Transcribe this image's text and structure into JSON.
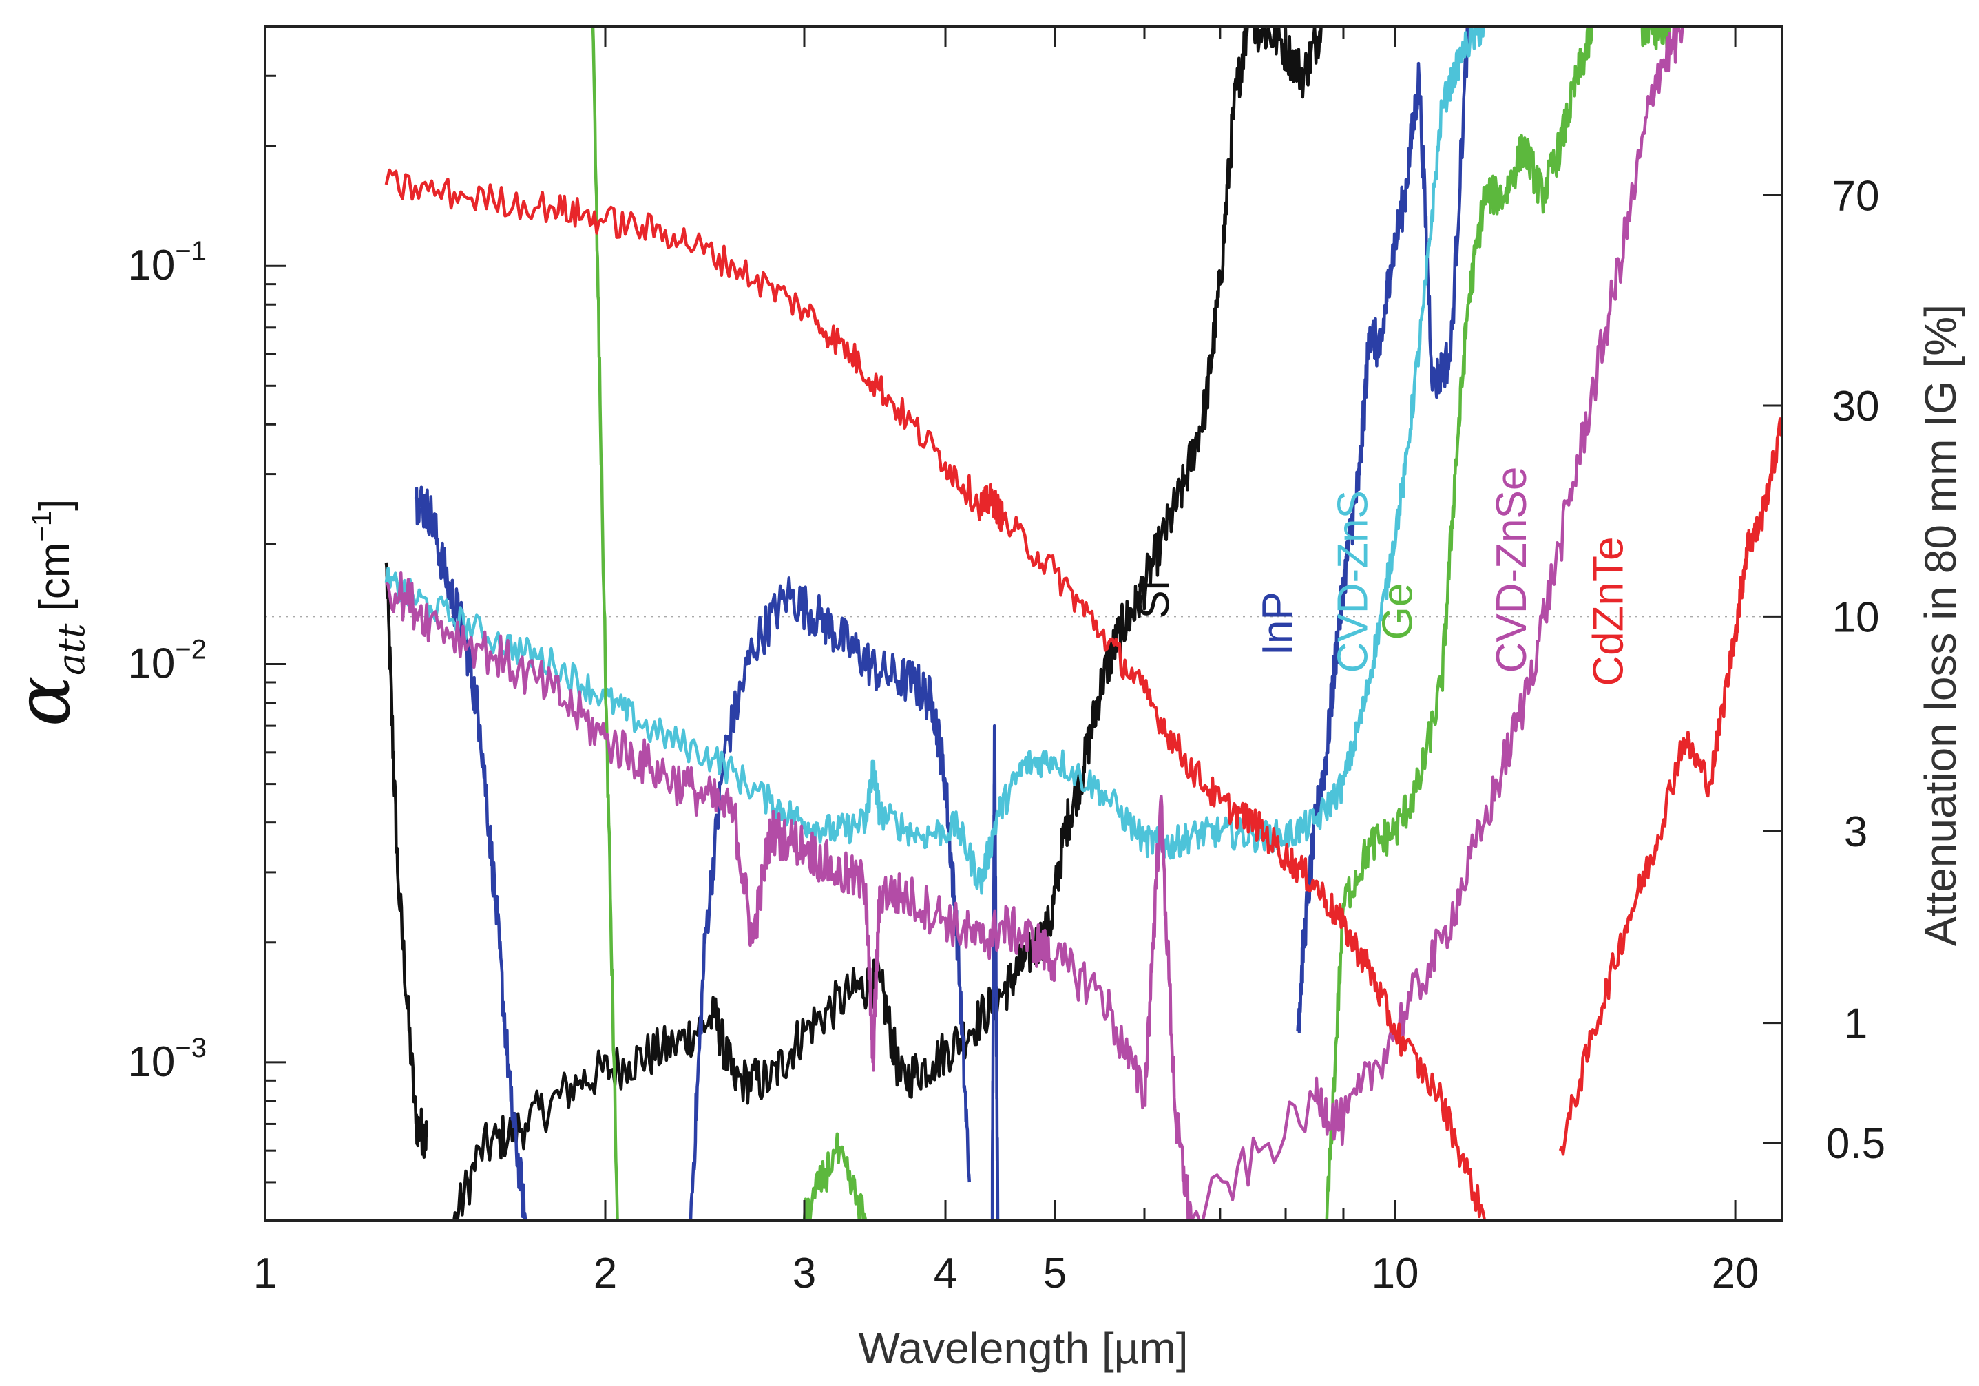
{
  "chart_data": {
    "type": "line",
    "title": "",
    "xlabel": "Wavelength [µm]",
    "ylabel": {
      "symbol": "α",
      "subscript": "att",
      "unit": "[cm",
      "unit_exp": "−1",
      "unit_close": "]"
    },
    "y2label": "Attenuation loss in 80 mm IG [%]",
    "xscale": "log",
    "yscale": "log",
    "xlim": [
      1,
      22
    ],
    "ylim": [
      0.0004,
      0.4
    ],
    "x_ticks": [
      {
        "value": 1,
        "label": "1"
      },
      {
        "value": 2,
        "label": "2"
      },
      {
        "value": 3,
        "label": "3"
      },
      {
        "value": 4,
        "label": "4"
      },
      {
        "value": 5,
        "label": "5"
      },
      {
        "value": 10,
        "label": "10"
      },
      {
        "value": 20,
        "label": "20"
      }
    ],
    "y_ticks": [
      {
        "value": 0.1,
        "base": "10",
        "exp": "−1"
      },
      {
        "value": 0.01,
        "base": "10",
        "exp": "−2"
      },
      {
        "value": 0.001,
        "base": "10",
        "exp": "−3"
      }
    ],
    "y2_ticks": [
      {
        "value": 70,
        "alpha": 0.1505,
        "label": "70"
      },
      {
        "value": 30,
        "alpha": 0.0446,
        "label": "30"
      },
      {
        "value": 10,
        "alpha": 0.01317,
        "label": "10"
      },
      {
        "value": 3,
        "alpha": 0.00381,
        "label": "3"
      },
      {
        "value": 1,
        "alpha": 0.001256,
        "label": "1"
      },
      {
        "value": 0.5,
        "alpha": 0.000627,
        "label": "0.5"
      }
    ],
    "reference_line": {
      "alpha": 0.01317,
      "style": "dotted"
    },
    "series": [
      {
        "name": "Si",
        "color": "#111111",
        "label_at": [
          6.3,
          0.013
        ],
        "noise": 0.06,
        "segments": [
          [
            [
              1.28,
              0.018
            ],
            [
              1.31,
              0.003
            ],
            [
              1.36,
              0.0007
            ],
            [
              1.39,
              0.00065
            ]
          ],
          [
            [
              1.42,
              0.0003
            ],
            [
              1.55,
              0.0006
            ],
            [
              1.7,
              0.0007
            ],
            [
              1.9,
              0.0009
            ],
            [
              2.1,
              0.001
            ],
            [
              2.3,
              0.0011
            ],
            [
              2.5,
              0.0013
            ],
            [
              2.6,
              0.0009
            ],
            [
              2.8,
              0.0009
            ],
            [
              3.0,
              0.0012
            ],
            [
              3.3,
              0.0015
            ],
            [
              3.5,
              0.0016
            ],
            [
              3.65,
              0.0009
            ],
            [
              3.9,
              0.001
            ],
            [
              4.2,
              0.0012
            ],
            [
              4.5,
              0.0015
            ],
            [
              4.7,
              0.0018
            ],
            [
              4.95,
              0.0022
            ],
            [
              5.1,
              0.0038
            ],
            [
              5.3,
              0.0055
            ],
            [
              5.5,
              0.009
            ],
            [
              5.7,
              0.012
            ],
            [
              5.9,
              0.014
            ],
            [
              6.2,
              0.02
            ],
            [
              6.5,
              0.028
            ],
            [
              6.8,
              0.045
            ],
            [
              7.0,
              0.09
            ],
            [
              7.2,
              0.25
            ],
            [
              7.4,
              0.4
            ]
          ],
          [
            [
              7.5,
              0.4
            ],
            [
              7.9,
              0.37
            ],
            [
              8.3,
              0.3
            ],
            [
              8.6,
              0.4
            ]
          ]
        ]
      },
      {
        "name": "InP",
        "color": "#2b3fa6",
        "label_at": [
          8.1,
          0.0105
        ],
        "noise": 0.06,
        "segments": [
          [
            [
              1.36,
              0.026
            ],
            [
              1.4,
              0.024
            ],
            [
              1.45,
              0.016
            ],
            [
              1.5,
              0.012
            ],
            [
              1.55,
              0.007
            ],
            [
              1.6,
              0.0025
            ],
            [
              1.65,
              0.0008
            ],
            [
              1.7,
              0.0004
            ]
          ],
          [
            [
              2.38,
              0.0004
            ],
            [
              2.45,
              0.002
            ],
            [
              2.55,
              0.006
            ],
            [
              2.7,
              0.011
            ],
            [
              2.9,
              0.015
            ],
            [
              3.1,
              0.013
            ],
            [
              3.3,
              0.011
            ],
            [
              3.5,
              0.0095
            ],
            [
              3.75,
              0.009
            ],
            [
              3.9,
              0.008
            ],
            [
              4.0,
              0.005
            ],
            [
              4.1,
              0.002
            ],
            [
              4.2,
              0.0005
            ]
          ],
          [
            [
              4.4,
              0.0004
            ],
            [
              4.42,
              0.007
            ],
            [
              4.45,
              0.0004
            ]
          ],
          [
            [
              8.2,
              0.0012
            ],
            [
              8.3,
              0.002
            ],
            [
              8.5,
              0.004
            ],
            [
              8.7,
              0.006
            ],
            [
              8.9,
              0.012
            ],
            [
              9.1,
              0.02
            ],
            [
              9.3,
              0.03
            ],
            [
              9.5,
              0.07
            ],
            [
              9.7,
              0.06
            ],
            [
              9.9,
              0.1
            ],
            [
              10.2,
              0.15
            ],
            [
              10.5,
              0.3
            ],
            [
              10.8,
              0.05
            ],
            [
              11.2,
              0.06
            ],
            [
              11.6,
              0.4
            ]
          ]
        ]
      },
      {
        "name": "CVD-ZnS",
        "color": "#4dc3d9",
        "label_at": [
          9.45,
          0.0095
        ],
        "noise": 0.04,
        "segments": [
          [
            [
              1.28,
              0.016
            ],
            [
              1.4,
              0.014
            ],
            [
              1.6,
              0.0115
            ],
            [
              1.8,
              0.01
            ],
            [
              2.0,
              0.0082
            ],
            [
              2.2,
              0.0068
            ],
            [
              2.5,
              0.0058
            ],
            [
              2.8,
              0.0045
            ],
            [
              3.0,
              0.004
            ],
            [
              3.2,
              0.0038
            ],
            [
              3.4,
              0.004
            ],
            [
              3.45,
              0.0055
            ],
            [
              3.5,
              0.0042
            ],
            [
              3.8,
              0.0037
            ],
            [
              4.1,
              0.0039
            ],
            [
              4.3,
              0.0028
            ],
            [
              4.45,
              0.0042
            ],
            [
              4.7,
              0.0056
            ],
            [
              5.0,
              0.0058
            ],
            [
              5.5,
              0.0048
            ],
            [
              6.0,
              0.0036
            ],
            [
              6.3,
              0.0035
            ],
            [
              6.6,
              0.0037
            ],
            [
              7.0,
              0.0038
            ],
            [
              7.5,
              0.0037
            ],
            [
              8.0,
              0.0037
            ],
            [
              8.5,
              0.004
            ],
            [
              9.0,
              0.005
            ],
            [
              9.4,
              0.008
            ],
            [
              9.8,
              0.015
            ],
            [
              10.2,
              0.03
            ],
            [
              10.6,
              0.08
            ],
            [
              11.0,
              0.25
            ],
            [
              11.5,
              0.35
            ],
            [
              12.0,
              0.4
            ]
          ]
        ]
      },
      {
        "name": "Ge",
        "color": "#5cb83d",
        "label_at": [
          10.35,
          0.0115
        ],
        "noise": 0.05,
        "segments": [
          [
            [
              1.95,
              0.4
            ],
            [
              2.0,
              0.01
            ],
            [
              2.05,
              0.0004
            ]
          ],
          [
            [
              3.0,
              0.0004
            ],
            [
              3.2,
              0.0006
            ],
            [
              3.4,
              0.0004
            ]
          ],
          [
            [
              8.7,
              0.0004
            ],
            [
              9.0,
              0.0025
            ],
            [
              9.5,
              0.0035
            ],
            [
              10.0,
              0.0038
            ],
            [
              10.5,
              0.005
            ],
            [
              11.0,
              0.009
            ],
            [
              11.3,
              0.03
            ],
            [
              11.6,
              0.08
            ],
            [
              12.0,
              0.15
            ],
            [
              12.5,
              0.15
            ],
            [
              13.0,
              0.2
            ],
            [
              13.5,
              0.15
            ],
            [
              14.0,
              0.2
            ],
            [
              14.5,
              0.3
            ],
            [
              15.0,
              0.4
            ]
          ],
          [
            [
              16.5,
              0.4
            ],
            [
              17.0,
              0.38
            ],
            [
              17.5,
              0.4
            ]
          ]
        ]
      },
      {
        "name": "CVD-ZnSe",
        "color": "#b34ca6",
        "label_at": [
          13.05,
          0.0095
        ],
        "noise": 0.06,
        "segments": [
          [
            [
              1.28,
              0.016
            ],
            [
              1.4,
              0.013
            ],
            [
              1.6,
              0.0105
            ],
            [
              1.8,
              0.0085
            ],
            [
              2.0,
              0.0065
            ],
            [
              2.2,
              0.0055
            ],
            [
              2.4,
              0.0048
            ],
            [
              2.6,
              0.0042
            ],
            [
              2.7,
              0.002
            ],
            [
              2.8,
              0.0038
            ],
            [
              3.0,
              0.0035
            ],
            [
              3.2,
              0.003
            ],
            [
              3.4,
              0.0028
            ],
            [
              3.45,
              0.001
            ],
            [
              3.5,
              0.0027
            ],
            [
              3.7,
              0.0026
            ],
            [
              4.0,
              0.0023
            ],
            [
              4.3,
              0.002
            ],
            [
              4.5,
              0.0022
            ],
            [
              4.8,
              0.002
            ],
            [
              5.0,
              0.0018
            ],
            [
              5.5,
              0.0015
            ],
            [
              6.0,
              0.0008
            ],
            [
              6.2,
              0.0045
            ],
            [
              6.4,
              0.0007
            ],
            [
              6.6,
              0.0004
            ],
            [
              8.5,
              0.0008
            ],
            [
              9.0,
              0.0007
            ],
            [
              10.0,
              0.0012
            ],
            [
              11.0,
              0.002
            ],
            [
              12.0,
              0.004
            ],
            [
              13.0,
              0.008
            ],
            [
              14.0,
              0.02
            ],
            [
              15.0,
              0.05
            ],
            [
              16.0,
              0.12
            ],
            [
              17.0,
              0.3
            ],
            [
              18.0,
              0.4
            ]
          ]
        ]
      },
      {
        "name": "CdZnTe",
        "color": "#e8262a",
        "label_at": [
          15.9,
          0.0088
        ],
        "noise": 0.04,
        "segments": [
          [
            [
              1.28,
              0.16
            ],
            [
              1.5,
              0.15
            ],
            [
              1.8,
              0.14
            ],
            [
              2.0,
              0.13
            ],
            [
              2.3,
              0.12
            ],
            [
              2.6,
              0.1
            ],
            [
              3.0,
              0.078
            ],
            [
              3.3,
              0.06
            ],
            [
              3.6,
              0.045
            ],
            [
              4.0,
              0.032
            ],
            [
              4.3,
              0.025
            ],
            [
              4.4,
              0.026
            ],
            [
              4.5,
              0.023
            ],
            [
              5.0,
              0.017
            ],
            [
              5.5,
              0.012
            ],
            [
              6.0,
              0.0085
            ],
            [
              6.5,
              0.0058
            ],
            [
              7.0,
              0.0045
            ],
            [
              7.5,
              0.004
            ],
            [
              8.0,
              0.0033
            ],
            [
              8.5,
              0.0028
            ],
            [
              9.0,
              0.0022
            ],
            [
              9.5,
              0.0017
            ],
            [
              10.0,
              0.0012
            ],
            [
              11.0,
              0.0008
            ],
            [
              12.0,
              0.0004
            ]
          ],
          [
            [
              14.0,
              0.0006
            ],
            [
              15.0,
              0.0012
            ],
            [
              16.0,
              0.0022
            ],
            [
              17.0,
              0.0035
            ],
            [
              18.0,
              0.0065
            ],
            [
              19.0,
              0.005
            ],
            [
              20.0,
              0.012
            ],
            [
              20.5,
              0.02
            ],
            [
              21.0,
              0.022
            ],
            [
              22.0,
              0.04
            ]
          ]
        ]
      }
    ]
  }
}
